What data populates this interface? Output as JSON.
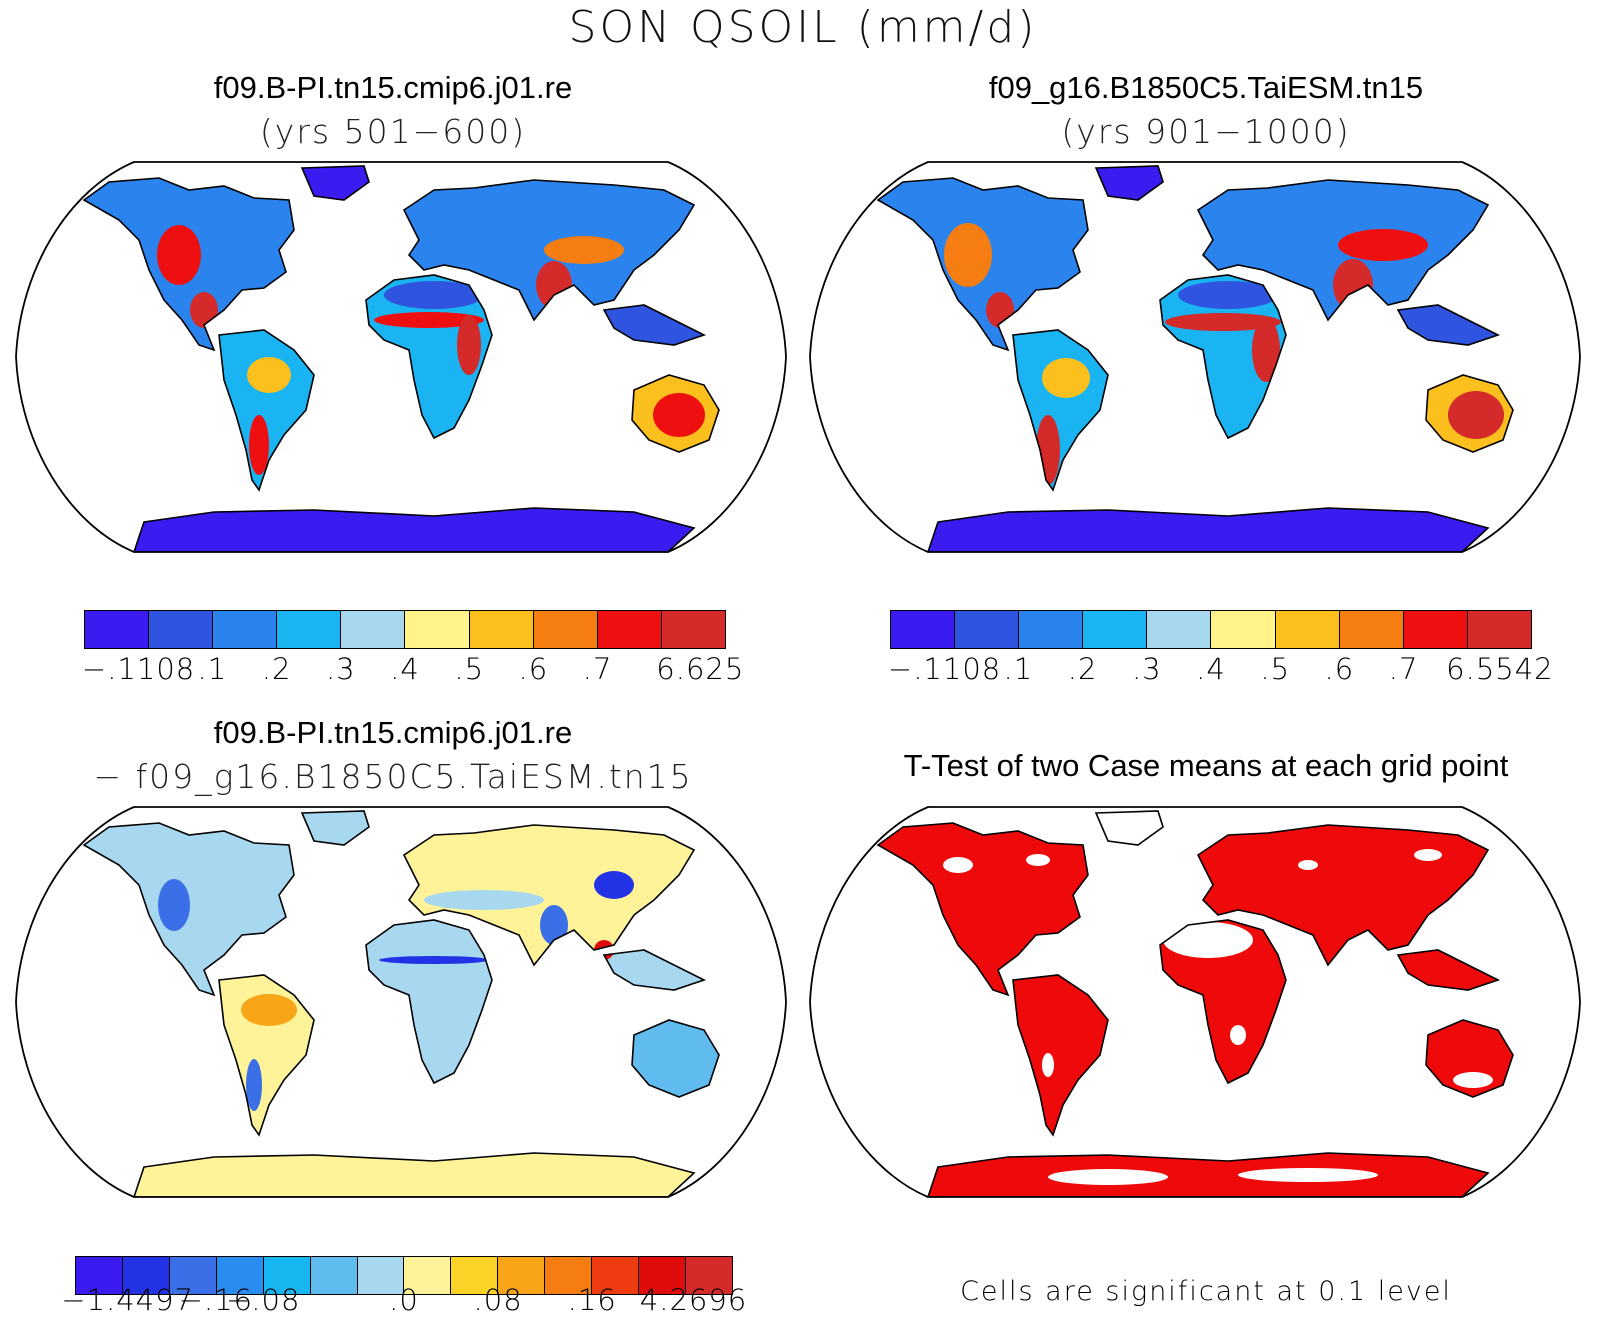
{
  "figure": {
    "title": "SON QSOIL (mm/d)"
  },
  "panels": [
    {
      "id": "case1",
      "title": "f09.B-PI.tn15.cmip6.j01.re",
      "subtitle": "(yrs 501−600)",
      "colorbar": {
        "colors": [
          "#3b1cf0",
          "#2f55e0",
          "#2b83ee",
          "#1ab4f2",
          "#a8d8f0",
          "#fff38a",
          "#fbbf1e",
          "#f57d11",
          "#ee1010",
          "#d42a2a"
        ],
        "labels": [
          "−.1108",
          ".1",
          ".2",
          ".3",
          ".4",
          ".5",
          ".6",
          ".7",
          "6.625"
        ]
      }
    },
    {
      "id": "case2",
      "title": "f09_g16.B1850C5.TaiESM.tn15",
      "subtitle": "(yrs 901−1000)",
      "colorbar": {
        "colors": [
          "#3b1cf0",
          "#2f55e0",
          "#2b83ee",
          "#1ab4f2",
          "#a8d8f0",
          "#fff38a",
          "#fbbf1e",
          "#f57d11",
          "#ee1010",
          "#d42a2a"
        ],
        "labels": [
          "−.1108",
          ".1",
          ".2",
          ".3",
          ".4",
          ".5",
          ".6",
          ".7",
          "6.5542"
        ]
      }
    },
    {
      "id": "difference",
      "title": "f09.B-PI.tn15.cmip6.j01.re",
      "subtitle": "− f09_g16.B1850C5.TaiESM.tn15",
      "colorbar": {
        "colors": [
          "#3b1cf0",
          "#2233e6",
          "#3b6fe8",
          "#2b8cf0",
          "#18b6f0",
          "#60bcee",
          "#a8d8f0",
          "#fff39a",
          "#fbd226",
          "#f9a518",
          "#f57d11",
          "#ee3b10",
          "#e00b0b",
          "#d42a2a"
        ],
        "labels": [
          "−1.4497",
          "−.16",
          "−.08",
          ".0",
          ".08",
          ".16",
          "4.2696"
        ]
      }
    },
    {
      "id": "ttest",
      "title": "T-Test of two Case means at each grid point",
      "note": "Cells are significant at 0.1 level",
      "significant_color": "#ee0a0a"
    }
  ],
  "map_style": {
    "projection": "Robinson",
    "ocean_color": "#ffffff",
    "coastline_color": "#000000"
  }
}
